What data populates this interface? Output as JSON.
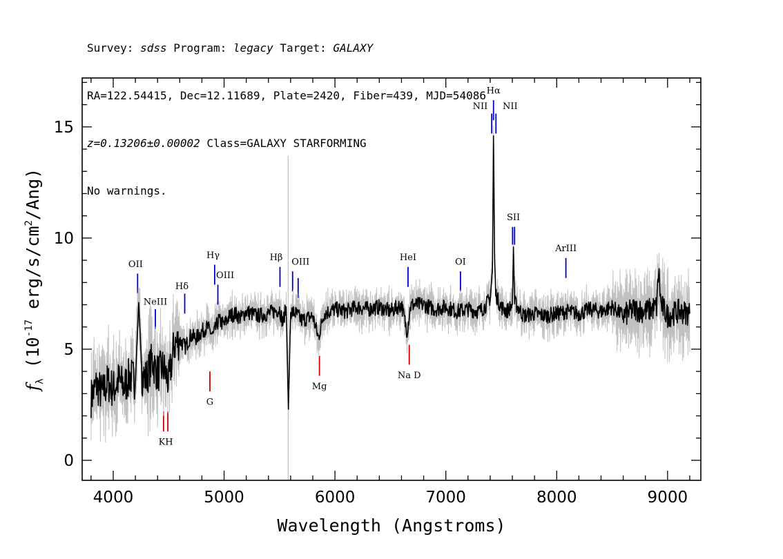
{
  "header": {
    "survey_label": "Survey: ",
    "survey": "sdss",
    "program_label": " Program: ",
    "program": "legacy",
    "target_label": " Target: ",
    "target": "GALAXY",
    "line2": "RA=122.54415, Dec=12.11689, Plate=2420, Fiber=439, MJD=54086",
    "redshift": "z=0.13206±0.00002",
    "class_text": " Class=GALAXY STARFORMING",
    "warnings": "No warnings."
  },
  "chart_data": {
    "type": "line",
    "xlabel": "Wavelength (Angstroms)",
    "ylabel": "f_λ (10^-17 erg/s/cm^2/Ang)",
    "xlim": [
      3720,
      9300
    ],
    "ylim": [
      -0.9,
      17.2
    ],
    "xticks": [
      4000,
      5000,
      6000,
      7000,
      8000,
      9000
    ],
    "yticks": [
      0,
      5,
      10,
      15
    ],
    "colors": {
      "flux": "#000000",
      "error": "#c0c0c0",
      "emission": "#0000cc",
      "absorption": "#cc0000"
    },
    "series": [
      {
        "role": "flux",
        "x": [
          3800,
          3850,
          3900,
          3950,
          4000,
          4050,
          4100,
          4150,
          4200,
          4230,
          4260,
          4300,
          4350,
          4400,
          4450,
          4500,
          4550,
          4600,
          4650,
          4700,
          4750,
          4800,
          4850,
          4900,
          4950,
          5000,
          5050,
          5100,
          5150,
          5200,
          5300,
          5400,
          5500,
          5530,
          5560,
          5580,
          5600,
          5650,
          5700,
          5800,
          5850,
          5900,
          6000,
          6100,
          6200,
          6300,
          6400,
          6500,
          6600,
          6650,
          6680,
          6700,
          6800,
          6900,
          7000,
          7100,
          7200,
          7300,
          7350,
          7400,
          7420,
          7430,
          7440,
          7450,
          7470,
          7500,
          7550,
          7600,
          7610,
          7620,
          7650,
          7700,
          7800,
          7900,
          8000,
          8100,
          8200,
          8300,
          8400,
          8500,
          8600,
          8700,
          8800,
          8900,
          8920,
          8940,
          9000,
          9100,
          9200
        ],
        "y": [
          2.8,
          3.4,
          3.0,
          3.5,
          3.2,
          3.6,
          3.3,
          3.8,
          3.6,
          7.1,
          3.8,
          3.7,
          4.5,
          3.9,
          4.2,
          3.5,
          5.2,
          5.4,
          5.1,
          5.6,
          5.5,
          5.8,
          6.0,
          5.6,
          6.3,
          6.1,
          6.5,
          6.6,
          6.4,
          6.7,
          6.5,
          6.6,
          6.8,
          6.2,
          6.9,
          2.3,
          6.7,
          6.6,
          6.3,
          6.5,
          5.5,
          6.6,
          6.8,
          6.7,
          6.9,
          6.8,
          6.9,
          6.7,
          7.0,
          5.8,
          6.9,
          7.0,
          7.0,
          6.8,
          6.9,
          6.7,
          6.8,
          6.7,
          6.9,
          7.3,
          8.5,
          14.6,
          9.0,
          7.5,
          7.2,
          6.9,
          6.7,
          7.0,
          9.6,
          7.1,
          6.9,
          6.5,
          6.6,
          6.5,
          6.6,
          6.7,
          6.6,
          6.8,
          6.7,
          6.9,
          6.5,
          6.8,
          6.7,
          6.9,
          8.6,
          7.0,
          6.5,
          6.7,
          6.6
        ]
      }
    ],
    "lines": [
      {
        "name": "OII",
        "wavelength": 4220,
        "kind": "emission",
        "tick_y": [
          7.5,
          8.4
        ]
      },
      {
        "name": "NeIII",
        "wavelength": 4380,
        "kind": "emission",
        "tick_y": [
          5.9,
          6.8
        ]
      },
      {
        "name": "Hδ",
        "wavelength": 4645,
        "kind": "emission",
        "tick_y": [
          6.6,
          7.5
        ]
      },
      {
        "name": "Hγ",
        "wavelength": 4915,
        "kind": "emission",
        "tick_y": [
          7.9,
          8.8
        ]
      },
      {
        "name": "OIII",
        "wavelength": 4944,
        "kind": "emission",
        "tick_y": [
          7.0,
          7.9
        ]
      },
      {
        "name": "Hβ",
        "wavelength": 5504,
        "kind": "emission",
        "tick_y": [
          7.8,
          8.7
        ]
      },
      {
        "name": "OIII",
        "wavelength": 5618,
        "kind": "emission",
        "tick_y": [
          7.6,
          8.5
        ]
      },
      {
        "name": "OIII",
        "wavelength": 5668,
        "kind": "emission",
        "tick_y": [
          7.3,
          8.2
        ]
      },
      {
        "name": "HeI",
        "wavelength": 6659,
        "kind": "emission",
        "tick_y": [
          7.8,
          8.7
        ]
      },
      {
        "name": "OI",
        "wavelength": 7132,
        "kind": "emission",
        "tick_y": [
          7.6,
          8.5
        ]
      },
      {
        "name": "NII",
        "wavelength": 7414,
        "kind": "emission",
        "tick_y": [
          14.7,
          15.6
        ]
      },
      {
        "name": "Hα",
        "wavelength": 7430,
        "kind": "emission",
        "tick_y": [
          15.3,
          16.2
        ]
      },
      {
        "name": "NII",
        "wavelength": 7452,
        "kind": "emission",
        "tick_y": [
          14.7,
          15.6
        ]
      },
      {
        "name": "SII",
        "wavelength": 7602,
        "kind": "emission",
        "tick_y": [
          9.7,
          10.5
        ]
      },
      {
        "name": "SII",
        "wavelength": 7620,
        "kind": "emission",
        "tick_y": [
          9.7,
          10.5
        ]
      },
      {
        "name": "ArIII",
        "wavelength": 8083,
        "kind": "emission",
        "tick_y": [
          8.2,
          9.1
        ]
      },
      {
        "name": "K",
        "wavelength": 4454,
        "kind": "absorption",
        "tick_y": [
          1.3,
          2.2
        ]
      },
      {
        "name": "H",
        "wavelength": 4493,
        "kind": "absorption",
        "tick_y": [
          1.3,
          2.2
        ]
      },
      {
        "name": "G",
        "wavelength": 4872,
        "kind": "absorption",
        "tick_y": [
          3.1,
          4.0
        ]
      },
      {
        "name": "Mg",
        "wavelength": 5860,
        "kind": "absorption",
        "tick_y": [
          3.8,
          4.7
        ]
      },
      {
        "name": "Na D",
        "wavelength": 6670,
        "kind": "absorption",
        "tick_y": [
          4.3,
          5.2
        ]
      }
    ],
    "label_text": {
      "OII": "OII",
      "NeIII": "NeIII",
      "Hd": "Hδ",
      "Hg": "Hγ",
      "OIII_a": "OIII",
      "Hb": "Hβ",
      "OIII_b": "OIII",
      "HeI": "HeI",
      "OI": "OI",
      "NII_a": "NII",
      "Ha": "Hα",
      "NII_b": "NII",
      "SII": "SII",
      "ArIII": "ArIII",
      "KH": "KH",
      "G": "G",
      "Mg": "Mg",
      "NaD": "Na D"
    }
  }
}
